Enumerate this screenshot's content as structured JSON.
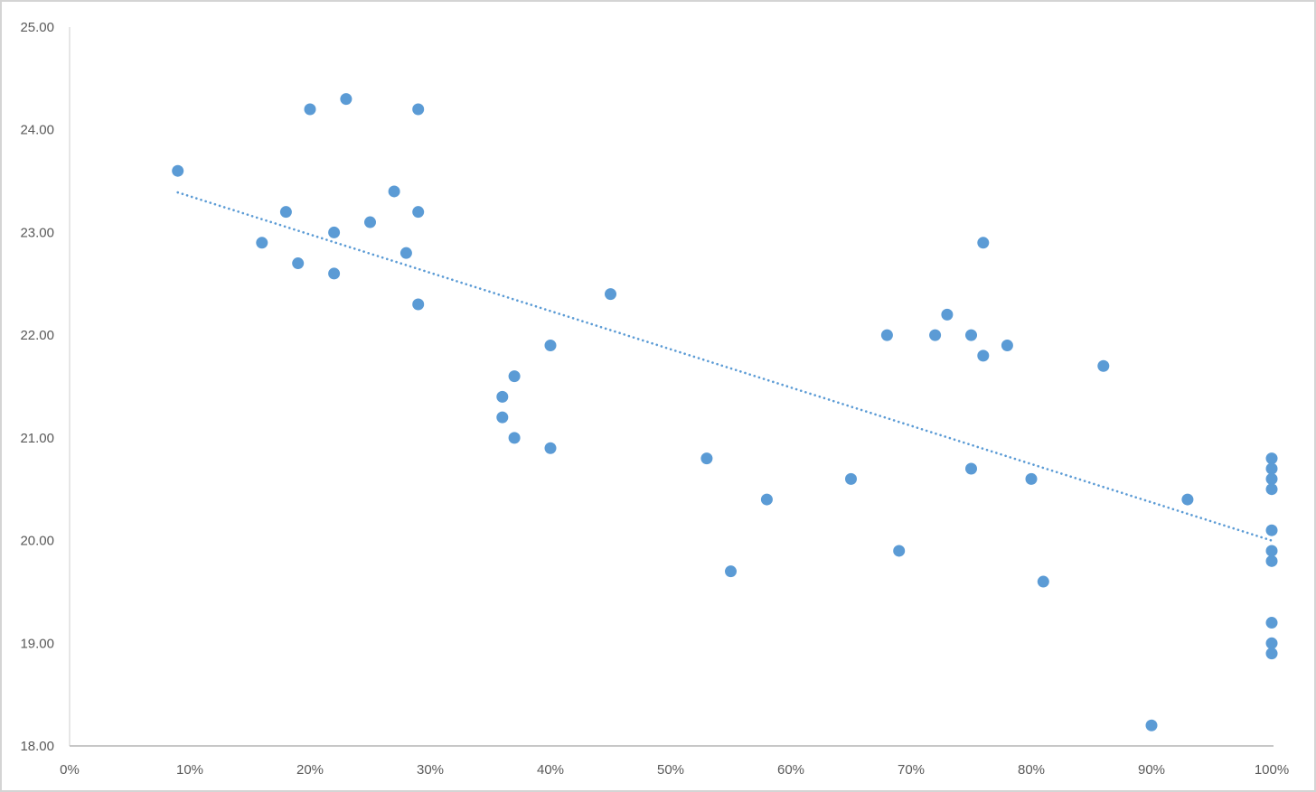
{
  "chart_data": {
    "type": "scatter",
    "title": "",
    "xlabel": "",
    "ylabel": "",
    "grid": false,
    "legend": false,
    "x_axis": {
      "min": 0,
      "max": 100,
      "format": "percent",
      "ticks": [
        0,
        10,
        20,
        30,
        40,
        50,
        60,
        70,
        80,
        90,
        100
      ],
      "tick_labels": [
        "0%",
        "10%",
        "20%",
        "30%",
        "40%",
        "50%",
        "60%",
        "70%",
        "80%",
        "90%",
        "100%"
      ]
    },
    "y_axis": {
      "min": 18,
      "max": 25,
      "ticks": [
        18,
        19,
        20,
        21,
        22,
        23,
        24,
        25
      ],
      "tick_labels": [
        "18.00",
        "19.00",
        "20.00",
        "21.00",
        "22.00",
        "23.00",
        "24.00",
        "25.00"
      ]
    },
    "series": [
      {
        "name": "scatter-series",
        "marker": "circle",
        "marker_color": "#5B9BD5",
        "points": [
          [
            9,
            23.6
          ],
          [
            16,
            22.9
          ],
          [
            18,
            23.2
          ],
          [
            19,
            22.7
          ],
          [
            20,
            24.2
          ],
          [
            22,
            23.0
          ],
          [
            22,
            22.6
          ],
          [
            23,
            24.3
          ],
          [
            25,
            23.1
          ],
          [
            27,
            23.4
          ],
          [
            28,
            22.8
          ],
          [
            29,
            24.2
          ],
          [
            29,
            23.2
          ],
          [
            29,
            22.3
          ],
          [
            36,
            21.4
          ],
          [
            36,
            21.2
          ],
          [
            37,
            21.6
          ],
          [
            37,
            21.0
          ],
          [
            40,
            21.9
          ],
          [
            40,
            20.9
          ],
          [
            45,
            22.4
          ],
          [
            53,
            20.8
          ],
          [
            55,
            19.7
          ],
          [
            58,
            20.4
          ],
          [
            65,
            20.6
          ],
          [
            68,
            22.0
          ],
          [
            69,
            19.9
          ],
          [
            72,
            22.0
          ],
          [
            73,
            22.2
          ],
          [
            75,
            22.0
          ],
          [
            75,
            20.7
          ],
          [
            76,
            22.9
          ],
          [
            76,
            21.8
          ],
          [
            78,
            21.9
          ],
          [
            80,
            20.6
          ],
          [
            81,
            19.6
          ],
          [
            86,
            21.7
          ],
          [
            90,
            18.2
          ],
          [
            93,
            20.4
          ],
          [
            100,
            20.8
          ],
          [
            100,
            20.7
          ],
          [
            100,
            20.6
          ],
          [
            100,
            20.5
          ],
          [
            100,
            20.1
          ],
          [
            100,
            19.9
          ],
          [
            100,
            19.8
          ],
          [
            100,
            19.2
          ],
          [
            100,
            19.0
          ],
          [
            100,
            18.9
          ]
        ]
      }
    ],
    "trendline": {
      "type": "linear",
      "style": "dotted",
      "color": "#5B9BD5",
      "start": [
        9,
        23.39
      ],
      "end": [
        100,
        20.0
      ]
    }
  },
  "colors": {
    "marker": "#5B9BD5",
    "trendline": "#5B9BD5",
    "y_axis_line": "#D9D9D9",
    "x_axis_line": "#BFBFBF",
    "tick_label": "#595959",
    "background": "#FFFFFF",
    "chart_border": "#D4D4D4"
  }
}
